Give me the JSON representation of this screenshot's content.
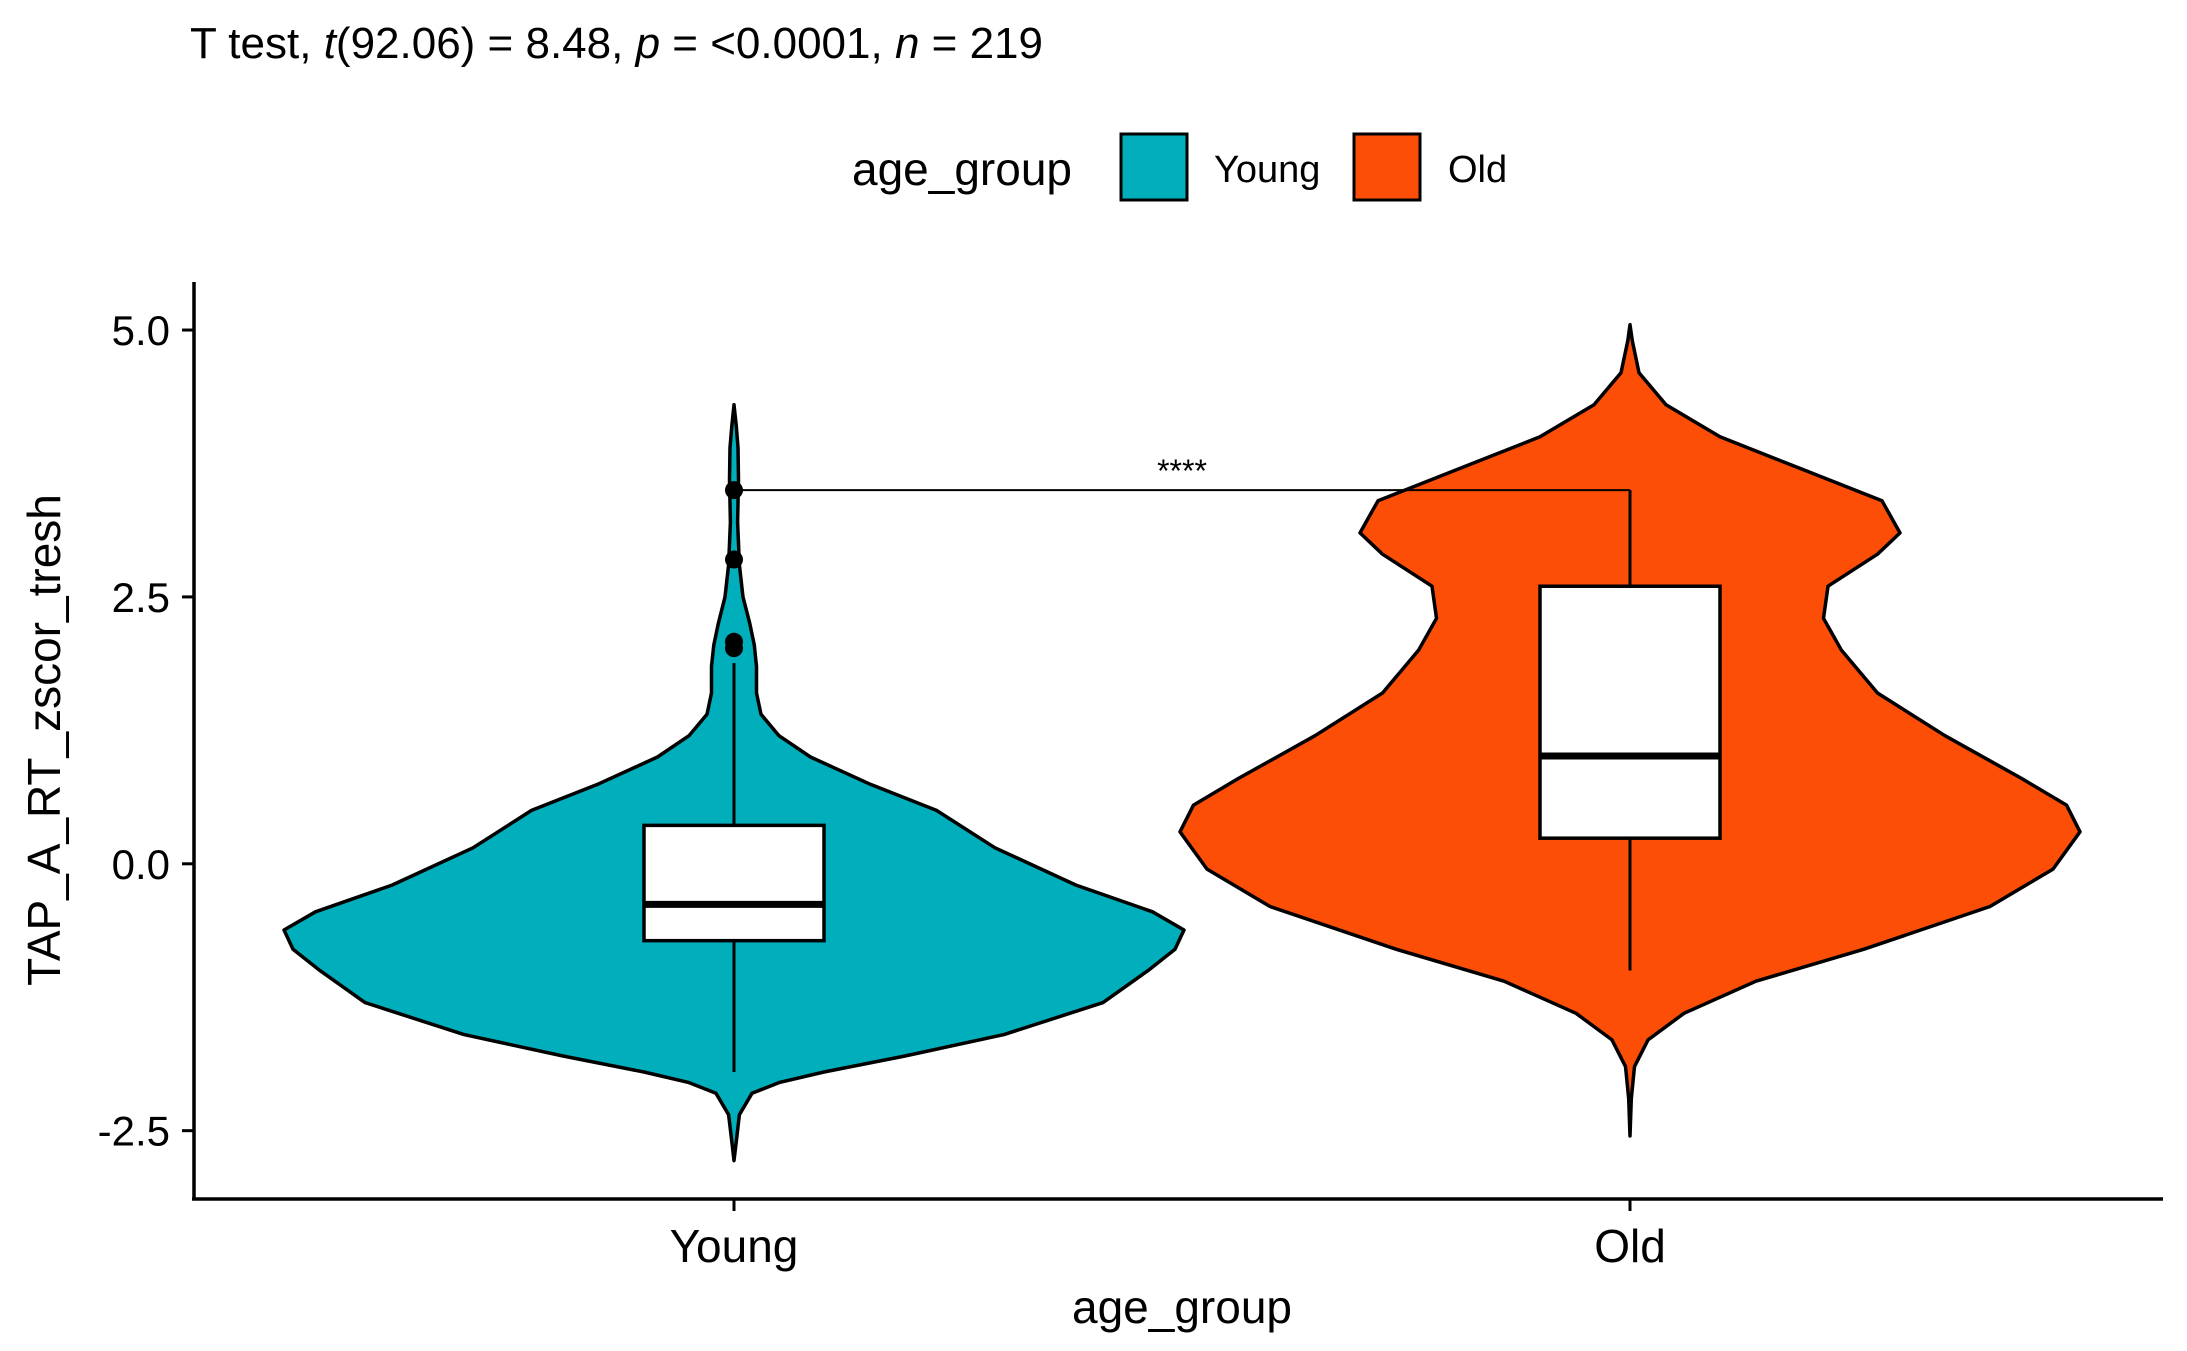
{
  "chart_data": {
    "type": "violin",
    "title": {
      "prefix": "T test, ",
      "t_sym": "t",
      "t_part": "(92.06) = 8.48, ",
      "p_sym": "p",
      "p_part": " = <0.0001, ",
      "n_sym": "n",
      "n_part": " = 219"
    },
    "legend": {
      "title": "age_group",
      "position": "top",
      "entries": [
        {
          "label": "Young",
          "color": "#00AFBB"
        },
        {
          "label": "Old",
          "color": "#FC4E07"
        }
      ]
    },
    "xlabel": "age_group",
    "ylabel": "TAP_A_RT_zscor_tresh",
    "categories": [
      "Young",
      "Old"
    ],
    "ylim": [
      -3.14,
      5.45
    ],
    "yticks": [
      -2.5,
      0.0,
      2.5,
      5.0
    ],
    "ytick_labels": [
      "-2.5",
      "0.0",
      "2.5",
      "5.0"
    ],
    "grid": false,
    "violins": [
      {
        "group": "Young",
        "color": "#00AFBB",
        "profile": [
          [
            -2.78,
            0.0
          ],
          [
            -2.6,
            0.005
          ],
          [
            -2.35,
            0.012
          ],
          [
            -2.15,
            0.04
          ],
          [
            -2.05,
            0.1
          ],
          [
            -1.95,
            0.2
          ],
          [
            -1.8,
            0.38
          ],
          [
            -1.6,
            0.6
          ],
          [
            -1.3,
            0.82
          ],
          [
            -1.0,
            0.92
          ],
          [
            -0.8,
            0.98
          ],
          [
            -0.62,
            1.0
          ],
          [
            -0.45,
            0.93
          ],
          [
            -0.2,
            0.76
          ],
          [
            0.15,
            0.58
          ],
          [
            0.5,
            0.45
          ],
          [
            0.75,
            0.3
          ],
          [
            1.0,
            0.17
          ],
          [
            1.2,
            0.1
          ],
          [
            1.4,
            0.06
          ],
          [
            1.6,
            0.05
          ],
          [
            1.85,
            0.05
          ],
          [
            2.05,
            0.045
          ],
          [
            2.25,
            0.035
          ],
          [
            2.5,
            0.02
          ],
          [
            2.8,
            0.012
          ],
          [
            3.2,
            0.008
          ],
          [
            3.6,
            0.01
          ],
          [
            3.9,
            0.009
          ],
          [
            4.1,
            0.005
          ],
          [
            4.3,
            0.0
          ]
        ],
        "box": {
          "q1": -0.72,
          "median": -0.38,
          "q3": 0.36,
          "whisker_low": -1.95,
          "whisker_high": 1.88
        },
        "outliers": [
          2.02,
          2.08,
          2.85,
          3.5
        ]
      },
      {
        "group": "Old",
        "color": "#FC4E07",
        "profile": [
          [
            -2.55,
            0.0
          ],
          [
            -2.2,
            0.003
          ],
          [
            -1.9,
            0.01
          ],
          [
            -1.65,
            0.04
          ],
          [
            -1.4,
            0.12
          ],
          [
            -1.1,
            0.28
          ],
          [
            -0.8,
            0.52
          ],
          [
            -0.4,
            0.8
          ],
          [
            -0.05,
            0.94
          ],
          [
            0.3,
            1.0
          ],
          [
            0.55,
            0.97
          ],
          [
            0.8,
            0.87
          ],
          [
            1.2,
            0.7
          ],
          [
            1.6,
            0.55
          ],
          [
            2.0,
            0.47
          ],
          [
            2.3,
            0.43
          ],
          [
            2.6,
            0.44
          ],
          [
            2.9,
            0.55
          ],
          [
            3.1,
            0.6
          ],
          [
            3.4,
            0.56
          ],
          [
            3.7,
            0.38
          ],
          [
            4.0,
            0.2
          ],
          [
            4.3,
            0.08
          ],
          [
            4.6,
            0.02
          ],
          [
            4.9,
            0.005
          ],
          [
            5.05,
            0.0
          ]
        ],
        "box": {
          "q1": 0.24,
          "median": 1.01,
          "q3": 2.6,
          "whisker_low": -1.0,
          "whisker_high": 3.5
        },
        "outliers": []
      }
    ],
    "annotations": [
      {
        "label": "****",
        "from": "Young",
        "to": "Old",
        "y": 3.5
      }
    ]
  }
}
